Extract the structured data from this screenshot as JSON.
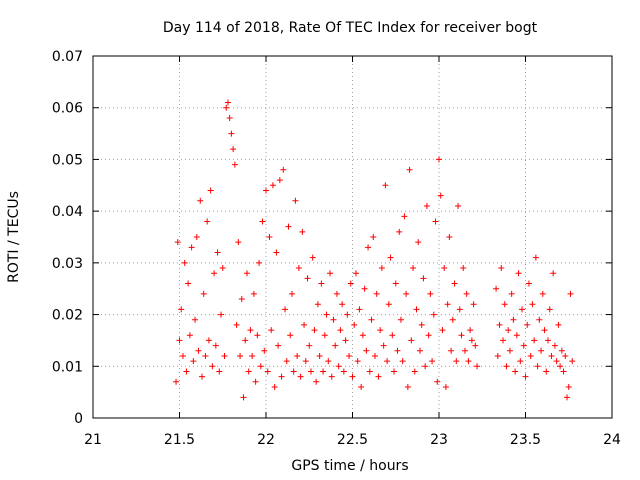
{
  "chart_data": {
    "type": "scatter",
    "title": "Day 114 of 2018, Rate Of TEC Index for receiver bogt",
    "xlabel": "GPS time / hours",
    "ylabel": "ROTI / TECUs",
    "xlim": [
      21,
      24
    ],
    "ylim": [
      0,
      0.07
    ],
    "xticks": [
      21,
      21.5,
      22,
      22.5,
      23,
      23.5,
      24
    ],
    "xtick_labels": [
      "21",
      "21.5",
      "22",
      "22.5",
      "23",
      "23.5",
      "24"
    ],
    "yticks": [
      0,
      0.01,
      0.02,
      0.03,
      0.04,
      0.05,
      0.06,
      0.07
    ],
    "ytick_labels": [
      "0",
      "0.01",
      "0.02",
      "0.03",
      "0.04",
      "0.05",
      "0.06",
      "0.07"
    ],
    "grid": true,
    "marker": "+",
    "marker_color": "#ff0000",
    "series": [
      {
        "name": "ROTI",
        "points": [
          [
            21.48,
            0.007
          ],
          [
            21.49,
            0.034
          ],
          [
            21.5,
            0.015
          ],
          [
            21.51,
            0.021
          ],
          [
            21.52,
            0.012
          ],
          [
            21.53,
            0.03
          ],
          [
            21.54,
            0.009
          ],
          [
            21.55,
            0.026
          ],
          [
            21.56,
            0.016
          ],
          [
            21.57,
            0.033
          ],
          [
            21.58,
            0.011
          ],
          [
            21.59,
            0.019
          ],
          [
            21.6,
            0.035
          ],
          [
            21.61,
            0.013
          ],
          [
            21.62,
            0.042
          ],
          [
            21.63,
            0.008
          ],
          [
            21.64,
            0.024
          ],
          [
            21.65,
            0.012
          ],
          [
            21.66,
            0.038
          ],
          [
            21.67,
            0.015
          ],
          [
            21.68,
            0.044
          ],
          [
            21.69,
            0.01
          ],
          [
            21.7,
            0.028
          ],
          [
            21.71,
            0.014
          ],
          [
            21.72,
            0.032
          ],
          [
            21.73,
            0.009
          ],
          [
            21.74,
            0.02
          ],
          [
            21.75,
            0.029
          ],
          [
            21.76,
            0.012
          ],
          [
            21.77,
            0.06
          ],
          [
            21.78,
            0.061
          ],
          [
            21.79,
            0.058
          ],
          [
            21.8,
            0.055
          ],
          [
            21.81,
            0.052
          ],
          [
            21.82,
            0.049
          ],
          [
            21.83,
            0.018
          ],
          [
            21.84,
            0.034
          ],
          [
            21.85,
            0.012
          ],
          [
            21.86,
            0.023
          ],
          [
            21.87,
            0.004
          ],
          [
            21.88,
            0.015
          ],
          [
            21.89,
            0.028
          ],
          [
            21.9,
            0.009
          ],
          [
            21.91,
            0.017
          ],
          [
            21.92,
            0.012
          ],
          [
            21.93,
            0.024
          ],
          [
            21.94,
            0.007
          ],
          [
            21.95,
            0.016
          ],
          [
            21.96,
            0.03
          ],
          [
            21.97,
            0.01
          ],
          [
            21.98,
            0.038
          ],
          [
            21.99,
            0.013
          ],
          [
            22.0,
            0.044
          ],
          [
            22.01,
            0.009
          ],
          [
            22.02,
            0.035
          ],
          [
            22.03,
            0.017
          ],
          [
            22.04,
            0.045
          ],
          [
            22.05,
            0.006
          ],
          [
            22.06,
            0.032
          ],
          [
            22.07,
            0.014
          ],
          [
            22.08,
            0.046
          ],
          [
            22.09,
            0.008
          ],
          [
            22.1,
            0.048
          ],
          [
            22.11,
            0.021
          ],
          [
            22.12,
            0.011
          ],
          [
            22.13,
            0.037
          ],
          [
            22.14,
            0.016
          ],
          [
            22.15,
            0.024
          ],
          [
            22.16,
            0.009
          ],
          [
            22.17,
            0.042
          ],
          [
            22.18,
            0.012
          ],
          [
            22.19,
            0.029
          ],
          [
            22.2,
            0.008
          ],
          [
            22.21,
            0.036
          ],
          [
            22.22,
            0.018
          ],
          [
            22.23,
            0.011
          ],
          [
            22.24,
            0.027
          ],
          [
            22.25,
            0.014
          ],
          [
            22.26,
            0.009
          ],
          [
            22.27,
            0.031
          ],
          [
            22.28,
            0.017
          ],
          [
            22.29,
            0.007
          ],
          [
            22.3,
            0.022
          ],
          [
            22.31,
            0.012
          ],
          [
            22.32,
            0.026
          ],
          [
            22.33,
            0.009
          ],
          [
            22.34,
            0.016
          ],
          [
            22.35,
            0.02
          ],
          [
            22.36,
            0.011
          ],
          [
            22.37,
            0.028
          ],
          [
            22.38,
            0.008
          ],
          [
            22.39,
            0.019
          ],
          [
            22.4,
            0.014
          ],
          [
            22.41,
            0.024
          ],
          [
            22.42,
            0.01
          ],
          [
            22.43,
            0.017
          ],
          [
            22.44,
            0.022
          ],
          [
            22.45,
            0.009
          ],
          [
            22.46,
            0.015
          ],
          [
            22.47,
            0.02
          ],
          [
            22.48,
            0.012
          ],
          [
            22.49,
            0.026
          ],
          [
            22.5,
            0.008
          ],
          [
            22.51,
            0.018
          ],
          [
            22.52,
            0.028
          ],
          [
            22.53,
            0.011
          ],
          [
            22.54,
            0.021
          ],
          [
            22.55,
            0.006
          ],
          [
            22.56,
            0.016
          ],
          [
            22.57,
            0.025
          ],
          [
            22.58,
            0.013
          ],
          [
            22.59,
            0.033
          ],
          [
            22.6,
            0.009
          ],
          [
            22.61,
            0.019
          ],
          [
            22.62,
            0.035
          ],
          [
            22.63,
            0.012
          ],
          [
            22.64,
            0.024
          ],
          [
            22.65,
            0.008
          ],
          [
            22.66,
            0.017
          ],
          [
            22.67,
            0.029
          ],
          [
            22.68,
            0.014
          ],
          [
            22.69,
            0.045
          ],
          [
            22.7,
            0.011
          ],
          [
            22.71,
            0.022
          ],
          [
            22.72,
            0.031
          ],
          [
            22.73,
            0.016
          ],
          [
            22.74,
            0.009
          ],
          [
            22.75,
            0.026
          ],
          [
            22.76,
            0.013
          ],
          [
            22.77,
            0.036
          ],
          [
            22.78,
            0.019
          ],
          [
            22.79,
            0.011
          ],
          [
            22.8,
            0.039
          ],
          [
            22.81,
            0.024
          ],
          [
            22.82,
            0.006
          ],
          [
            22.83,
            0.048
          ],
          [
            22.84,
            0.015
          ],
          [
            22.85,
            0.029
          ],
          [
            22.86,
            0.009
          ],
          [
            22.87,
            0.021
          ],
          [
            22.88,
            0.034
          ],
          [
            22.89,
            0.013
          ],
          [
            22.9,
            0.018
          ],
          [
            22.91,
            0.027
          ],
          [
            22.92,
            0.01
          ],
          [
            22.93,
            0.041
          ],
          [
            22.94,
            0.016
          ],
          [
            22.95,
            0.024
          ],
          [
            22.96,
            0.011
          ],
          [
            22.97,
            0.02
          ],
          [
            22.98,
            0.038
          ],
          [
            22.99,
            0.007
          ],
          [
            23.0,
            0.05
          ],
          [
            23.01,
            0.043
          ],
          [
            23.02,
            0.017
          ],
          [
            23.03,
            0.029
          ],
          [
            23.04,
            0.006
          ],
          [
            23.05,
            0.022
          ],
          [
            23.06,
            0.035
          ],
          [
            23.07,
            0.013
          ],
          [
            23.08,
            0.019
          ],
          [
            23.09,
            0.026
          ],
          [
            23.1,
            0.011
          ],
          [
            23.11,
            0.041
          ],
          [
            23.12,
            0.021
          ],
          [
            23.13,
            0.016
          ],
          [
            23.14,
            0.029
          ],
          [
            23.15,
            0.013
          ],
          [
            23.16,
            0.024
          ],
          [
            23.17,
            0.011
          ],
          [
            23.18,
            0.017
          ],
          [
            23.19,
            0.015
          ],
          [
            23.2,
            0.022
          ],
          [
            23.21,
            0.014
          ],
          [
            23.22,
            0.01
          ],
          [
            23.33,
            0.025
          ],
          [
            23.34,
            0.012
          ],
          [
            23.35,
            0.018
          ],
          [
            23.36,
            0.029
          ],
          [
            23.37,
            0.015
          ],
          [
            23.38,
            0.022
          ],
          [
            23.39,
            0.01
          ],
          [
            23.4,
            0.017
          ],
          [
            23.41,
            0.013
          ],
          [
            23.42,
            0.024
          ],
          [
            23.43,
            0.019
          ],
          [
            23.44,
            0.009
          ],
          [
            23.45,
            0.016
          ],
          [
            23.46,
            0.028
          ],
          [
            23.47,
            0.011
          ],
          [
            23.48,
            0.021
          ],
          [
            23.49,
            0.014
          ],
          [
            23.5,
            0.008
          ],
          [
            23.51,
            0.018
          ],
          [
            23.52,
            0.026
          ],
          [
            23.53,
            0.012
          ],
          [
            23.54,
            0.022
          ],
          [
            23.55,
            0.015
          ],
          [
            23.56,
            0.031
          ],
          [
            23.57,
            0.01
          ],
          [
            23.58,
            0.019
          ],
          [
            23.59,
            0.013
          ],
          [
            23.6,
            0.024
          ],
          [
            23.61,
            0.017
          ],
          [
            23.62,
            0.009
          ],
          [
            23.63,
            0.015
          ],
          [
            23.64,
            0.021
          ],
          [
            23.65,
            0.012
          ],
          [
            23.66,
            0.028
          ],
          [
            23.67,
            0.014
          ],
          [
            23.68,
            0.011
          ],
          [
            23.69,
            0.018
          ],
          [
            23.7,
            0.01
          ],
          [
            23.71,
            0.013
          ],
          [
            23.72,
            0.009
          ],
          [
            23.73,
            0.012
          ],
          [
            23.74,
            0.004
          ],
          [
            23.75,
            0.006
          ],
          [
            23.76,
            0.024
          ],
          [
            23.77,
            0.011
          ]
        ]
      }
    ]
  }
}
